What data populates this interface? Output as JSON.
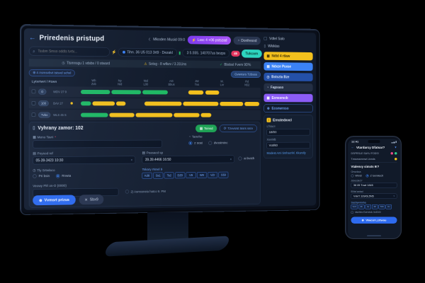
{
  "colors": {
    "screen_bg": "#121b2b",
    "panel_bg": "#172133",
    "accent_blue": "#3b82f6",
    "green": "#1fb963",
    "yellow": "#f3c01d",
    "purple": "#8b5cf6",
    "teal": "#2dd4bf",
    "red": "#e4365e",
    "link": "#5aa2f7"
  },
  "icons": {
    "back": "←",
    "moon": "☾",
    "search": "⌕",
    "bolt": "⚡",
    "clock": "◷",
    "warning": "⚠",
    "check": "✓",
    "plus": "⊕",
    "grid": "▦",
    "refresh": "⟳",
    "close": "✕",
    "caret": "▾",
    "info": "◔",
    "list": "▤",
    "doc": "▯",
    "filter": "▼",
    "battery": "▂▄▮"
  },
  "monitor": {
    "header": {
      "title": "Priredenis pristupd",
      "clock": "Mkoden Musid 09:0",
      "purple_button": "Lssc 4 +06 pstszad",
      "gray_button": "Donfresod"
    },
    "toolbar": {
      "search_placeholder": "Tssbm Smso oddts tvrtv...",
      "device_pill": "Tihn. 36 U5 013 3rt9 · Dezakl",
      "usage_pill": "3 5.555. 140707us bezps",
      "alert_badge": "45",
      "teal_button": "Tukcam"
    },
    "statusbar": {
      "items": [
        {
          "icon": "◷",
          "text": "Tlsmnsgu 1 vdsbs / 0 stward"
        },
        {
          "icon": "⚠",
          "text": "Sotsg - 8 wfbzv / 3.31Uns"
        },
        {
          "icon": "✓",
          "text": "Bbdosl Fvem 9D%"
        }
      ]
    },
    "filters": {
      "left_chip": "⊕ 4 Asmsvbvt tstsvd schxl",
      "right_chip": "Gvwnsrs Tzbsss"
    },
    "gantt": {
      "corner": "Lytxrtwrt / Pzwn",
      "columns": [
        {
          "top": "Wh",
          "bottom": "Zvb"
        },
        {
          "top": "Ny",
          "bottom": "Nid"
        },
        {
          "top": "Ntd",
          "bottom": "L00"
        },
        {
          "top": "AG",
          "bottom": "Bbus"
        },
        {
          "top": "JW",
          "bottom": "Tvs"
        },
        {
          "top": "M.",
          "bottom": "Lvr"
        },
        {
          "top": "Rd",
          "bottom": "N52"
        }
      ],
      "rows": [
        {
          "badge": "O",
          "label": "WDV 27 9",
          "dot": false,
          "bars": [
            {
              "l": 150,
              "w": 86,
              "c": "green"
            },
            {
              "l": 240,
              "w": 88,
              "c": "green"
            },
            {
              "l": 332,
              "w": 76,
              "c": "green"
            },
            {
              "l": 470,
              "w": 46,
              "c": "yellow"
            },
            {
              "l": 522,
              "w": 42,
              "c": "yellow"
            }
          ]
        },
        {
          "badge": "100",
          "label": "BAV 27",
          "dot": true,
          "bars": [
            {
              "l": 150,
              "w": 30,
              "c": "green"
            },
            {
              "l": 184,
              "w": 66,
              "c": "yellow"
            },
            {
              "l": 254,
              "w": 28,
              "c": "yellow"
            },
            {
              "l": 338,
              "w": 112,
              "c": "yellow"
            },
            {
              "l": 454,
              "w": 108,
              "c": "yellow"
            },
            {
              "l": 566,
              "w": 72,
              "c": "yellow"
            },
            {
              "l": 642,
              "w": 46,
              "c": "yellow"
            }
          ]
        },
        {
          "badge": "Tvbo",
          "label": "WLS 45 S",
          "dot": false,
          "bars": [
            {
              "l": 150,
              "w": 80,
              "c": "green"
            },
            {
              "l": 234,
              "w": 74,
              "c": "yellow"
            },
            {
              "l": 312,
              "w": 110,
              "c": "yellow"
            },
            {
              "l": 426,
              "w": 78,
              "c": "yellow"
            },
            {
              "l": 508,
              "w": 32,
              "c": "yellow"
            }
          ]
        }
      ]
    },
    "form": {
      "title": "Vyhrany zamor: 102",
      "green_button": "Tsmsd",
      "outline_button": "Tzvvsrst tssrs ssrv",
      "name_label": "Meno Tavri",
      "name_required": "*",
      "type_label": "Tamrhe",
      "type_radio1": "z scat",
      "type_radio2": "dvostminc",
      "from_label": "Poysod ref",
      "from_value": "05-39-3423 10:30",
      "to_label": "Peasacd sp",
      "to_value": "39.39.4466 16:50",
      "to_side": "ai bvsth",
      "mode_label": "Tly Srtwlaco",
      "mode_radio1": "Pri bsin",
      "mode_radio2": "Rnwta",
      "days_label": "Tskary rNnel 9",
      "days": [
        "Kd8",
        "Ss1",
        "Ts2",
        "DZ0",
        "V9",
        "W9",
        "VZr",
        "S59"
      ],
      "pin_label": "Veowy Plrl os-O (0000)",
      "note": "2) Asmssneia hatco 9. PM",
      "submit": "Vvmsrt prizus",
      "cancel": "Sbx9"
    },
    "sidebar": {
      "check_item": "Vdtel Salo",
      "list_item": "Wkiklas",
      "buttons": [
        {
          "label": "Ndtd 4 rtlaw"
        },
        {
          "label": "Ndxze Psxse"
        },
        {
          "label": "Bstszta Bze"
        },
        {
          "label": "Fapxaso"
        },
        {
          "label": "Eonssrscb"
        },
        {
          "label": "Eosnwrxso"
        }
      ],
      "panel": {
        "title": "Ernstedxvcl",
        "field1_label": "L'htacn",
        "field1_value": "18/00",
        "field2_label": "XsvrMb",
        "field2_value": "Vut/60",
        "link": "Modest Ami Smhacrlvl. Kkurxily"
      }
    }
  },
  "phone": {
    "time": "12:41",
    "header": {
      "title": "Vtardarcy Dfatsar?"
    },
    "row1": "DSPRSLE SAYU FODS!",
    "row2": "Tvwsrssmrxwl Lkmds",
    "form": {
      "title": "Vtalenvy simxts 9!?",
      "group_label": "Orwvkxa",
      "radio1": "Wrvst",
      "radio2": "Z tuxrxkectl",
      "field1_label": "Jdwsdxd?",
      "field1_value": "38 05 Tuwt 1845",
      "field2_label": "B'lds'axtad",
      "field2_value": "Vvkr't 109/0L5N5",
      "days_label": "Sasbyvvkvba",
      "days": [
        "Vu3",
        "4b",
        "2v",
        "40",
        "7b6",
        "Uv"
      ],
      "checkbox": "ldsvfxbv Esb'sfcfc 0x30r0i",
      "button": "Vlwcol Lzrtwou"
    }
  }
}
